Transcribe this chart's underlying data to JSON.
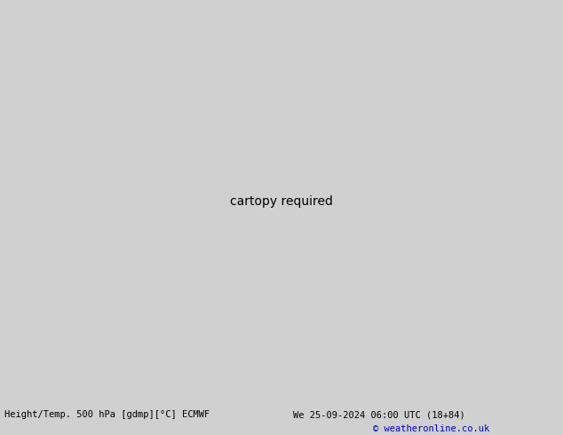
{
  "title_left": "Height/Temp. 500 hPa [gdmp][°C] ECMWF",
  "title_right": "We 25-09-2024 06:00 UTC (18+84)",
  "copyright": "© weatheronline.co.uk",
  "bg_color": "#d0d0d0",
  "ocean_color": "#d0d0d0",
  "land_color": "#e8e8e8",
  "green_color": "#b8e0a0",
  "gray_land_color": "#c0c0c0",
  "figsize": [
    6.34,
    4.9
  ],
  "dpi": 100
}
